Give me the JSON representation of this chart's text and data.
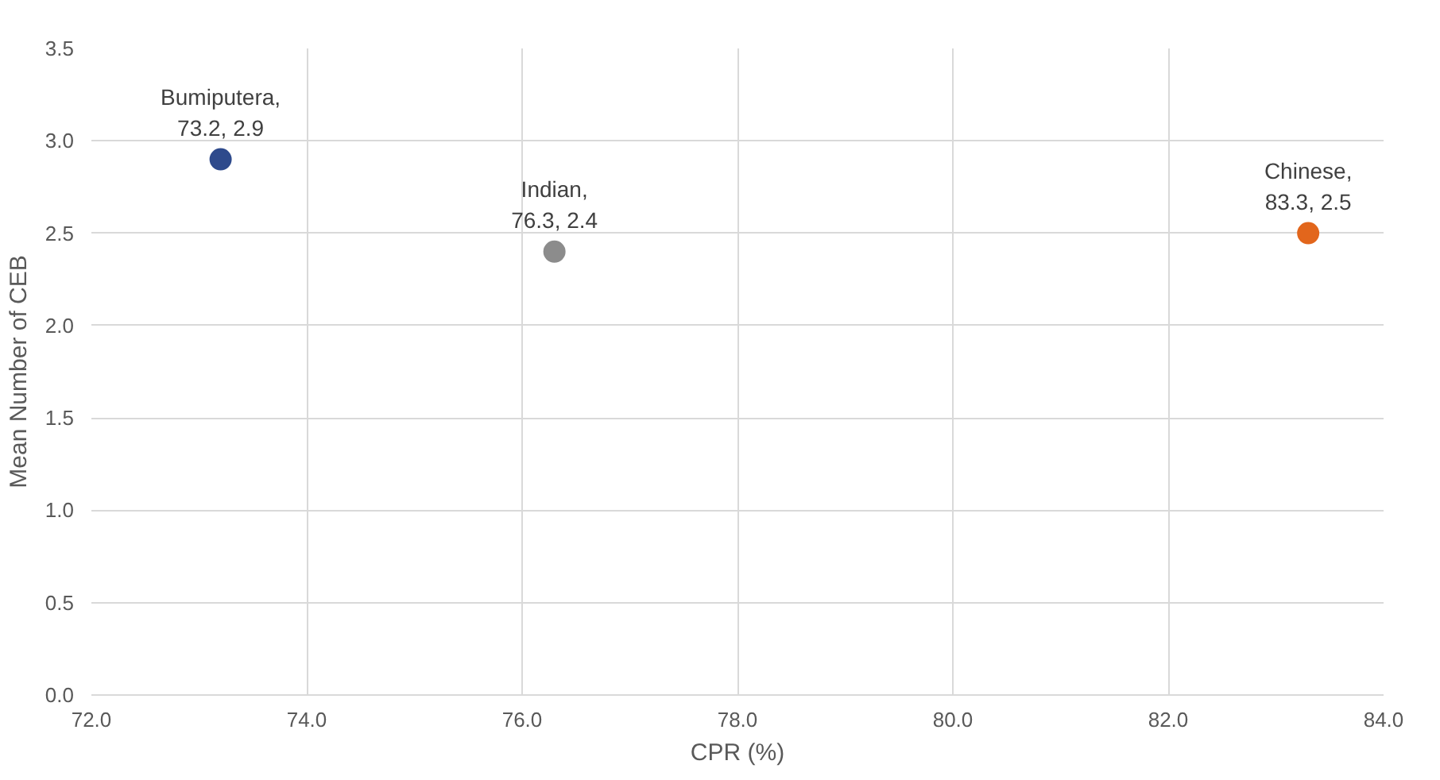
{
  "chart_data": {
    "type": "scatter",
    "xlabel": "CPR (%)",
    "ylabel": "Mean Number of CEB",
    "series": [
      {
        "x": [
          73.2
        ],
        "values": [
          2.9
        ],
        "color": "#2e4a8c"
      },
      {
        "x": [
          76.3
        ],
        "values": [
          2.4
        ],
        "color": "#8c8c8c"
      },
      {
        "x": [
          83.3
        ],
        "values": [
          2.5
        ],
        "color": "#e2661c"
      }
    ],
    "annotations": [
      {
        "text": "Bumiputera,\n73.2, 2.9",
        "x": 73.2,
        "y": 2.9
      },
      {
        "text": "Indian,\n76.3, 2.4",
        "x": 76.3,
        "y": 2.4
      },
      {
        "text": "Chinese,\n83.3, 2.5",
        "x": 83.3,
        "y": 2.5
      }
    ],
    "marker": "circle",
    "grid": true,
    "xlim": [
      72,
      84
    ],
    "xticks": [
      {
        "value": 72,
        "label": "72.0"
      },
      {
        "value": 74,
        "label": "74.0"
      },
      {
        "value": 76,
        "label": "76.0"
      },
      {
        "value": 78,
        "label": "78.0"
      },
      {
        "value": 80,
        "label": "80.0"
      },
      {
        "value": 82,
        "label": "82.0"
      },
      {
        "value": 84,
        "label": "84.0"
      }
    ],
    "ylim": [
      0,
      3.5
    ],
    "yticks": [
      {
        "value": 0,
        "label": "0.0"
      },
      {
        "value": 0.5,
        "label": "0.5"
      },
      {
        "value": 1,
        "label": "1.0"
      },
      {
        "value": 1.5,
        "label": "1.5"
      },
      {
        "value": 2,
        "label": "2.0"
      },
      {
        "value": 2.5,
        "label": "2.5"
      },
      {
        "value": 3,
        "label": "3.0"
      },
      {
        "value": 3.5,
        "label": "3.5"
      }
    ]
  }
}
